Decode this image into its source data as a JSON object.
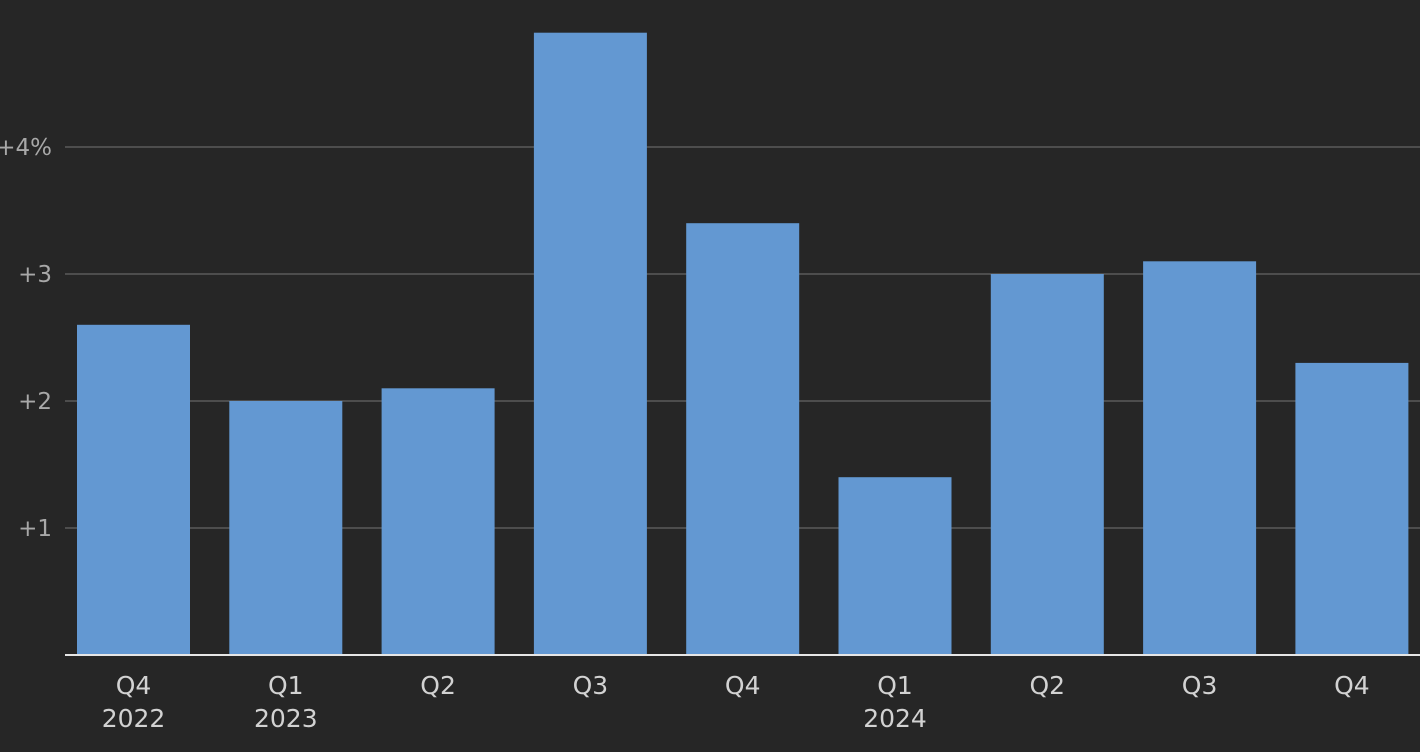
{
  "chart_data": {
    "type": "bar",
    "title": "",
    "xlabel": "",
    "ylabel": "",
    "categories": [
      {
        "quarter": "Q4",
        "year": "2022"
      },
      {
        "quarter": "Q1",
        "year": "2023"
      },
      {
        "quarter": "Q2",
        "year": ""
      },
      {
        "quarter": "Q3",
        "year": ""
      },
      {
        "quarter": "Q4",
        "year": ""
      },
      {
        "quarter": "Q1",
        "year": "2024"
      },
      {
        "quarter": "Q2",
        "year": ""
      },
      {
        "quarter": "Q3",
        "year": ""
      },
      {
        "quarter": "Q4",
        "year": ""
      }
    ],
    "values": [
      2.6,
      2.0,
      2.1,
      4.9,
      3.4,
      1.4,
      3.0,
      3.1,
      2.3
    ],
    "ylim": [
      0,
      5.0
    ],
    "yticks": [
      {
        "value": 1,
        "label": "+1"
      },
      {
        "value": 2,
        "label": "+2"
      },
      {
        "value": 3,
        "label": "+3"
      },
      {
        "value": 4,
        "label": "+4%"
      }
    ],
    "grid": true,
    "legend": "none",
    "bar_color": "#6398d2",
    "background_color": "#262626"
  }
}
